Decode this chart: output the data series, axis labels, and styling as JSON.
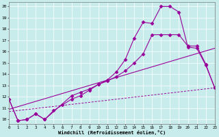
{
  "xlabel": "Windchill (Refroidissement éolien,°C)",
  "bg_color": "#c8ecec",
  "line_color": "#990099",
  "xlim": [
    0,
    23
  ],
  "ylim": [
    9.6,
    20.4
  ],
  "xticks": [
    0,
    1,
    2,
    3,
    4,
    5,
    6,
    7,
    8,
    9,
    10,
    11,
    12,
    13,
    14,
    15,
    16,
    17,
    18,
    19,
    20,
    21,
    22,
    23
  ],
  "yticks": [
    10,
    11,
    12,
    13,
    14,
    15,
    16,
    17,
    18,
    19,
    20
  ],
  "line1_x": [
    0,
    1,
    2,
    3,
    4,
    5,
    6,
    7,
    8,
    9,
    10,
    11,
    12,
    13,
    14,
    15,
    16,
    17,
    18,
    19,
    20,
    21,
    22,
    23
  ],
  "line1_y": [
    11.8,
    9.9,
    10.0,
    10.5,
    10.0,
    10.8,
    11.3,
    11.8,
    12.1,
    12.6,
    13.1,
    13.5,
    14.2,
    15.3,
    17.2,
    18.6,
    18.5,
    20.0,
    20.0,
    19.5,
    16.4,
    16.3,
    14.8,
    12.8
  ],
  "line2_x": [
    0,
    1,
    2,
    3,
    4,
    7,
    8,
    9,
    10,
    11,
    12,
    13,
    14,
    15,
    16,
    17,
    18,
    19,
    20,
    21,
    22,
    23
  ],
  "line2_y": [
    11.8,
    9.9,
    10.0,
    10.5,
    10.0,
    12.1,
    12.4,
    12.7,
    13.1,
    13.4,
    13.8,
    14.3,
    15.0,
    15.8,
    17.5,
    17.5,
    17.5,
    17.5,
    16.5,
    16.5,
    14.9,
    12.8
  ],
  "line3_x": [
    0,
    23
  ],
  "line3_y": [
    10.9,
    16.3
  ],
  "line4_x": [
    0,
    23
  ],
  "line4_y": [
    10.7,
    12.8
  ]
}
